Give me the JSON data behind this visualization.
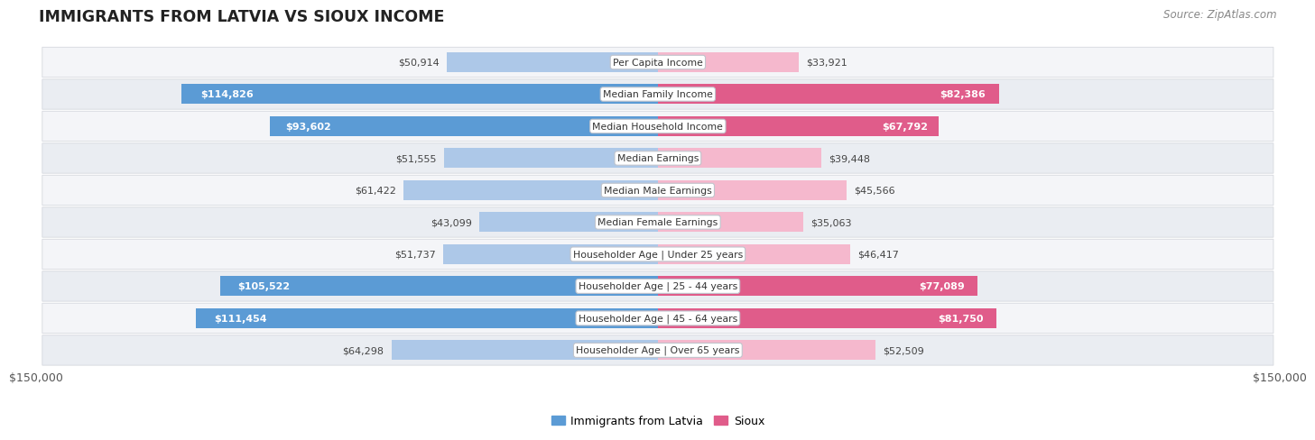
{
  "title": "IMMIGRANTS FROM LATVIA VS SIOUX INCOME",
  "source": "Source: ZipAtlas.com",
  "categories": [
    "Per Capita Income",
    "Median Family Income",
    "Median Household Income",
    "Median Earnings",
    "Median Male Earnings",
    "Median Female Earnings",
    "Householder Age | Under 25 years",
    "Householder Age | 25 - 44 years",
    "Householder Age | 45 - 64 years",
    "Householder Age | Over 65 years"
  ],
  "latvia_values": [
    50914,
    114826,
    93602,
    51555,
    61422,
    43099,
    51737,
    105522,
    111454,
    64298
  ],
  "sioux_values": [
    33921,
    82386,
    67792,
    39448,
    45566,
    35063,
    46417,
    77089,
    81750,
    52509
  ],
  "max_value": 150000,
  "latvia_color_light": "#adc8e8",
  "latvia_color_dark": "#5b9bd5",
  "sioux_color_light": "#f5b8cd",
  "sioux_color_dark": "#e05c8a",
  "background_color": "#ffffff",
  "row_bg_even": "#f0f2f5",
  "row_bg_odd": "#e8eaee",
  "x_tick_label": "$150,000",
  "legend_latvia": "Immigrants from Latvia",
  "legend_sioux": "Sioux",
  "latvia_dark_threshold": 80000,
  "sioux_dark_threshold": 65000
}
